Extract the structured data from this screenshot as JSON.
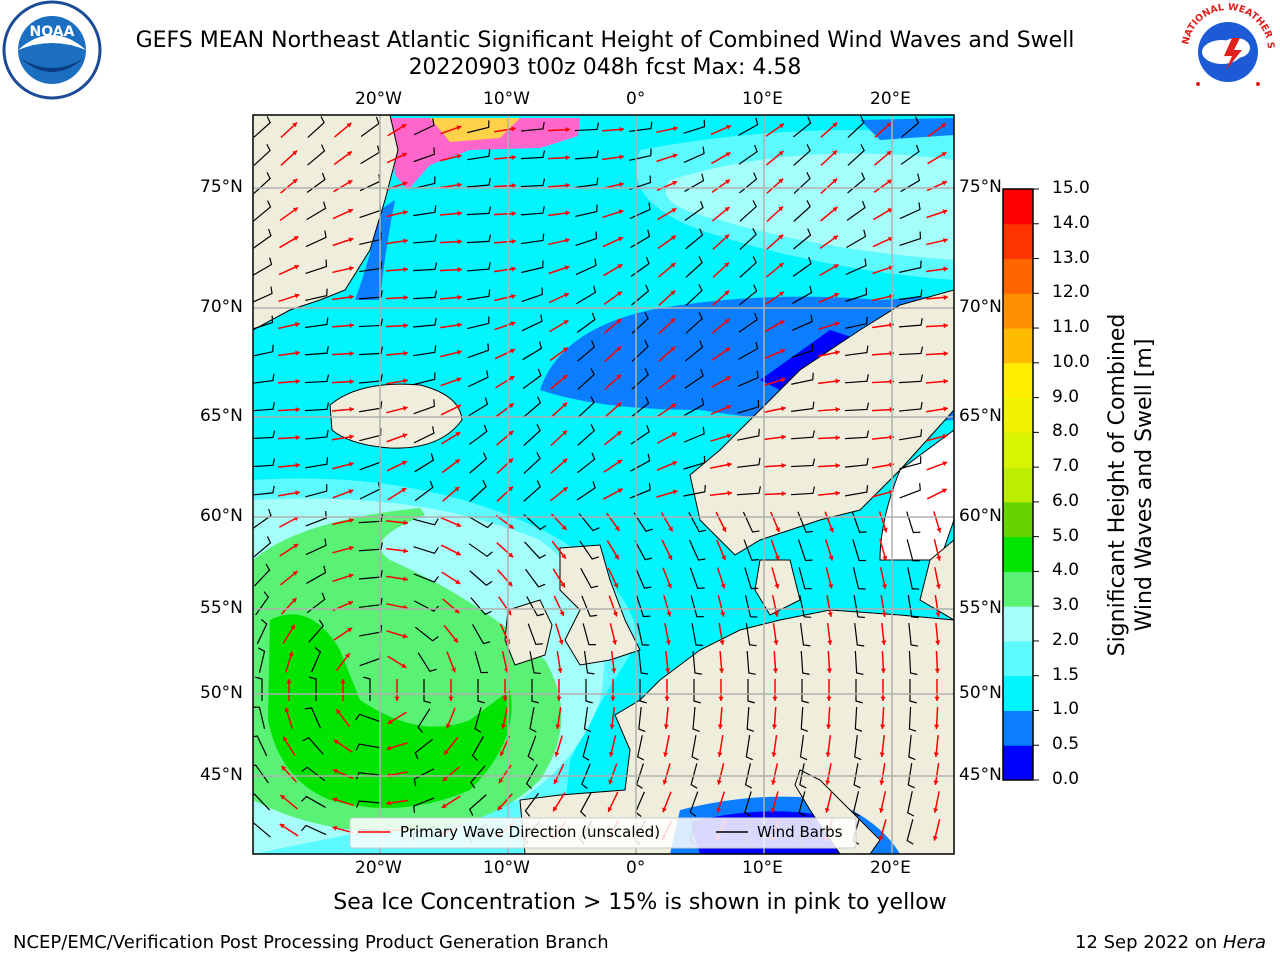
{
  "header": {
    "title_line1": "GEFS MEAN Northeast Atlantic Significant Height of Combined Wind Waves and Swell",
    "title_line2": "20220903 t00z 048h fcst   Max: 4.58"
  },
  "logos": {
    "noaa_text": "NOAA",
    "nws_ring_text": "NATIONAL WEATHER SERVICE"
  },
  "map": {
    "lon_labels": [
      "20°W",
      "10°W",
      "0°",
      "10°E",
      "20°E"
    ],
    "lat_labels": [
      "75°N",
      "70°N",
      "65°N",
      "60°N",
      "55°N",
      "50°N",
      "45°N"
    ],
    "legend": {
      "wave_label": "Primary Wave Direction (unscaled)",
      "wind_label": "Wind Barbs",
      "wave_color": "#ff0000",
      "wind_color": "#000000"
    },
    "colors": {
      "land": "#efeedc",
      "ice_pink": "#ff66cc",
      "ice_yellow": "#ffd24a"
    }
  },
  "colorbar": {
    "label": "Significant Height of Combined Wind Waves and Swell [m]",
    "label_line1": "Significant Height of Combined",
    "label_line2": "Wind Waves and Swell [m]",
    "ticks": [
      "15.0",
      "14.0",
      "13.0",
      "12.0",
      "11.0",
      "10.0",
      "9.0",
      "8.0",
      "7.0",
      "6.0",
      "5.0",
      "4.0",
      "3.0",
      "2.0",
      "1.5",
      "1.0",
      "0.5",
      "0.0"
    ],
    "bins": [
      {
        "from": 0.0,
        "to": 0.5,
        "color": "#0000ff"
      },
      {
        "from": 0.5,
        "to": 1.0,
        "color": "#0a7eff"
      },
      {
        "from": 1.0,
        "to": 1.5,
        "color": "#00f5ff"
      },
      {
        "from": 1.5,
        "to": 2.0,
        "color": "#5cf9ff"
      },
      {
        "from": 2.0,
        "to": 3.0,
        "color": "#a6fefb"
      },
      {
        "from": 3.0,
        "to": 4.0,
        "color": "#5af275"
      },
      {
        "from": 4.0,
        "to": 5.0,
        "color": "#00e400"
      },
      {
        "from": 5.0,
        "to": 6.0,
        "color": "#66d400"
      },
      {
        "from": 6.0,
        "to": 7.0,
        "color": "#bbee00"
      },
      {
        "from": 7.0,
        "to": 8.0,
        "color": "#d9f500"
      },
      {
        "from": 8.0,
        "to": 9.0,
        "color": "#f0f200"
      },
      {
        "from": 9.0,
        "to": 10.0,
        "color": "#ffee00"
      },
      {
        "from": 10.0,
        "to": 11.0,
        "color": "#ffbb00"
      },
      {
        "from": 11.0,
        "to": 12.0,
        "color": "#ff9000"
      },
      {
        "from": 12.0,
        "to": 13.0,
        "color": "#ff6600"
      },
      {
        "from": 13.0,
        "to": 14.0,
        "color": "#ff3300"
      },
      {
        "from": 14.0,
        "to": 15.0,
        "color": "#ff0000"
      }
    ]
  },
  "caption": "Sea Ice Concentration > 15% is shown in pink to yellow",
  "footer": {
    "left": "NCEP/EMC/Verification Post Processing Product Generation Branch",
    "right_date": "12 Sep 2022 on ",
    "right_host": "Hera"
  }
}
